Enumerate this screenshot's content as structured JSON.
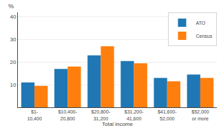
{
  "chart_data": {
    "type": "bar",
    "categories": [
      "$1-\n10,400",
      "$10,400-\n20,800",
      "$20,800-\n31,200",
      "$31,200-\n41,600",
      "$41,600-\n52,000",
      "$52,000\nor more"
    ],
    "series": [
      {
        "name": "ATO",
        "values": [
          11,
          17,
          23,
          20.5,
          13,
          14.5
        ]
      },
      {
        "name": "Census",
        "values": [
          9.5,
          18,
          27,
          19.5,
          11.5,
          13
        ]
      }
    ],
    "ylabel": "%",
    "xlabel": "Total income",
    "ylim": [
      0,
      42
    ],
    "yticks": [
      10,
      20,
      30,
      40
    ],
    "grid": true,
    "legend": "upper right"
  }
}
